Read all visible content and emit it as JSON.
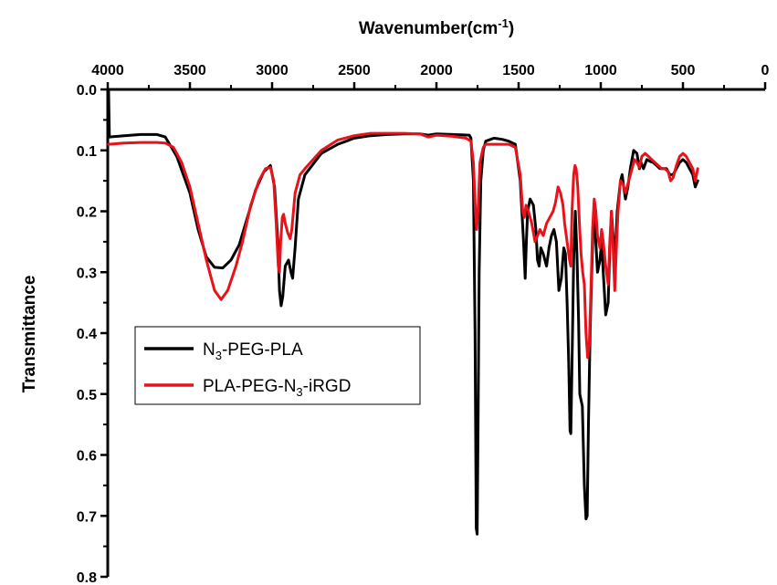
{
  "chart_data": {
    "type": "line",
    "title": "",
    "xlabel": "Wavenumber(cm",
    "xlabel_sup": "-1",
    "xlabel_end": ")",
    "ylabel": "Transmittance",
    "xlim": [
      4000,
      0
    ],
    "ylim": [
      0.0,
      0.8
    ],
    "x_axis_position": "top",
    "y_inverted": true,
    "grid": false,
    "legend_position": "center-left",
    "xticks": [
      "4000",
      "3500",
      "3000",
      "2500",
      "2000",
      "1500",
      "1000",
      "500",
      "0"
    ],
    "yticks": [
      "0.0",
      "0.1",
      "0.2",
      "0.3",
      "0.4",
      "0.5",
      "0.6",
      "0.7",
      "0.8"
    ],
    "series": [
      {
        "name": "N3-PEG-PLA",
        "legend_parts": [
          "N",
          "3",
          "-PEG-PLA"
        ],
        "color": "#000000",
        "points": [
          [
            3995,
            0.0
          ],
          [
            3990,
            0.078
          ],
          [
            3900,
            0.076
          ],
          [
            3800,
            0.074
          ],
          [
            3700,
            0.074
          ],
          [
            3650,
            0.078
          ],
          [
            3580,
            0.11
          ],
          [
            3500,
            0.17
          ],
          [
            3450,
            0.23
          ],
          [
            3400,
            0.275
          ],
          [
            3350,
            0.292
          ],
          [
            3300,
            0.293
          ],
          [
            3250,
            0.28
          ],
          [
            3200,
            0.255
          ],
          [
            3150,
            0.21
          ],
          [
            3100,
            0.165
          ],
          [
            3050,
            0.135
          ],
          [
            3010,
            0.125
          ],
          [
            2985,
            0.16
          ],
          [
            2965,
            0.25
          ],
          [
            2955,
            0.33
          ],
          [
            2945,
            0.355
          ],
          [
            2935,
            0.34
          ],
          [
            2920,
            0.29
          ],
          [
            2900,
            0.28
          ],
          [
            2885,
            0.3
          ],
          [
            2875,
            0.31
          ],
          [
            2860,
            0.26
          ],
          [
            2840,
            0.18
          ],
          [
            2800,
            0.14
          ],
          [
            2700,
            0.105
          ],
          [
            2600,
            0.09
          ],
          [
            2500,
            0.08
          ],
          [
            2400,
            0.076
          ],
          [
            2300,
            0.074
          ],
          [
            2200,
            0.073
          ],
          [
            2100,
            0.073
          ],
          [
            2050,
            0.075
          ],
          [
            2000,
            0.073
          ],
          [
            1900,
            0.074
          ],
          [
            1800,
            0.075
          ],
          [
            1790,
            0.08
          ],
          [
            1775,
            0.15
          ],
          [
            1765,
            0.4
          ],
          [
            1758,
            0.72
          ],
          [
            1752,
            0.73
          ],
          [
            1747,
            0.57
          ],
          [
            1740,
            0.3
          ],
          [
            1730,
            0.15
          ],
          [
            1715,
            0.1
          ],
          [
            1700,
            0.085
          ],
          [
            1650,
            0.08
          ],
          [
            1600,
            0.082
          ],
          [
            1560,
            0.085
          ],
          [
            1520,
            0.09
          ],
          [
            1490,
            0.15
          ],
          [
            1470,
            0.25
          ],
          [
            1460,
            0.31
          ],
          [
            1453,
            0.25
          ],
          [
            1445,
            0.2
          ],
          [
            1430,
            0.18
          ],
          [
            1410,
            0.19
          ],
          [
            1395,
            0.23
          ],
          [
            1385,
            0.28
          ],
          [
            1375,
            0.29
          ],
          [
            1365,
            0.26
          ],
          [
            1350,
            0.27
          ],
          [
            1330,
            0.29
          ],
          [
            1315,
            0.26
          ],
          [
            1300,
            0.24
          ],
          [
            1285,
            0.23
          ],
          [
            1270,
            0.25
          ],
          [
            1255,
            0.33
          ],
          [
            1240,
            0.31
          ],
          [
            1225,
            0.26
          ],
          [
            1215,
            0.27
          ],
          [
            1205,
            0.35
          ],
          [
            1195,
            0.45
          ],
          [
            1187,
            0.56
          ],
          [
            1182,
            0.565
          ],
          [
            1175,
            0.45
          ],
          [
            1165,
            0.28
          ],
          [
            1155,
            0.2
          ],
          [
            1145,
            0.27
          ],
          [
            1135,
            0.38
          ],
          [
            1128,
            0.5
          ],
          [
            1120,
            0.51
          ],
          [
            1112,
            0.52
          ],
          [
            1100,
            0.65
          ],
          [
            1090,
            0.705
          ],
          [
            1083,
            0.7
          ],
          [
            1075,
            0.55
          ],
          [
            1065,
            0.4
          ],
          [
            1055,
            0.3
          ],
          [
            1045,
            0.22
          ],
          [
            1038,
            0.2
          ],
          [
            1030,
            0.25
          ],
          [
            1020,
            0.3
          ],
          [
            1005,
            0.28
          ],
          [
            995,
            0.25
          ],
          [
            985,
            0.3
          ],
          [
            970,
            0.37
          ],
          [
            955,
            0.35
          ],
          [
            945,
            0.26
          ],
          [
            935,
            0.2
          ],
          [
            925,
            0.24
          ],
          [
            915,
            0.29
          ],
          [
            900,
            0.2
          ],
          [
            880,
            0.15
          ],
          [
            870,
            0.14
          ],
          [
            860,
            0.16
          ],
          [
            850,
            0.18
          ],
          [
            835,
            0.16
          ],
          [
            820,
            0.13
          ],
          [
            800,
            0.1
          ],
          [
            780,
            0.105
          ],
          [
            765,
            0.13
          ],
          [
            755,
            0.12
          ],
          [
            740,
            0.13
          ],
          [
            720,
            0.115
          ],
          [
            700,
            0.118
          ],
          [
            680,
            0.12
          ],
          [
            660,
            0.125
          ],
          [
            640,
            0.13
          ],
          [
            620,
            0.13
          ],
          [
            600,
            0.13
          ],
          [
            580,
            0.14
          ],
          [
            560,
            0.14
          ],
          [
            540,
            0.13
          ],
          [
            520,
            0.12
          ],
          [
            500,
            0.115
          ],
          [
            480,
            0.12
          ],
          [
            460,
            0.13
          ],
          [
            440,
            0.14
          ],
          [
            425,
            0.16
          ],
          [
            410,
            0.15
          ]
        ]
      },
      {
        "name": "PLA-PEG-N3-iRGD",
        "legend_parts": [
          "PLA-PEG-N",
          "3",
          "-iRGD"
        ],
        "color": "#e8121b",
        "points": [
          [
            3995,
            0.09
          ],
          [
            3900,
            0.088
          ],
          [
            3800,
            0.087
          ],
          [
            3700,
            0.087
          ],
          [
            3650,
            0.088
          ],
          [
            3600,
            0.095
          ],
          [
            3550,
            0.12
          ],
          [
            3500,
            0.16
          ],
          [
            3450,
            0.22
          ],
          [
            3400,
            0.28
          ],
          [
            3350,
            0.33
          ],
          [
            3310,
            0.345
          ],
          [
            3270,
            0.33
          ],
          [
            3220,
            0.29
          ],
          [
            3180,
            0.25
          ],
          [
            3130,
            0.19
          ],
          [
            3080,
            0.15
          ],
          [
            3040,
            0.13
          ],
          [
            3010,
            0.128
          ],
          [
            2990,
            0.15
          ],
          [
            2975,
            0.22
          ],
          [
            2962,
            0.29
          ],
          [
            2955,
            0.3
          ],
          [
            2948,
            0.25
          ],
          [
            2938,
            0.21
          ],
          [
            2930,
            0.205
          ],
          [
            2920,
            0.22
          ],
          [
            2905,
            0.235
          ],
          [
            2890,
            0.245
          ],
          [
            2880,
            0.23
          ],
          [
            2860,
            0.17
          ],
          [
            2830,
            0.14
          ],
          [
            2800,
            0.13
          ],
          [
            2700,
            0.1
          ],
          [
            2600,
            0.083
          ],
          [
            2500,
            0.076
          ],
          [
            2400,
            0.072
          ],
          [
            2300,
            0.072
          ],
          [
            2200,
            0.072
          ],
          [
            2100,
            0.073
          ],
          [
            2050,
            0.078
          ],
          [
            2000,
            0.075
          ],
          [
            1900,
            0.077
          ],
          [
            1820,
            0.08
          ],
          [
            1790,
            0.085
          ],
          [
            1775,
            0.12
          ],
          [
            1763,
            0.2
          ],
          [
            1755,
            0.23
          ],
          [
            1747,
            0.2
          ],
          [
            1735,
            0.12
          ],
          [
            1715,
            0.095
          ],
          [
            1700,
            0.09
          ],
          [
            1650,
            0.09
          ],
          [
            1600,
            0.09
          ],
          [
            1560,
            0.09
          ],
          [
            1520,
            0.095
          ],
          [
            1490,
            0.14
          ],
          [
            1475,
            0.2
          ],
          [
            1465,
            0.21
          ],
          [
            1455,
            0.19
          ],
          [
            1440,
            0.2
          ],
          [
            1420,
            0.22
          ],
          [
            1400,
            0.25
          ],
          [
            1385,
            0.24
          ],
          [
            1370,
            0.23
          ],
          [
            1350,
            0.24
          ],
          [
            1330,
            0.22
          ],
          [
            1310,
            0.21
          ],
          [
            1290,
            0.2
          ],
          [
            1275,
            0.185
          ],
          [
            1260,
            0.16
          ],
          [
            1245,
            0.17
          ],
          [
            1230,
            0.19
          ],
          [
            1220,
            0.22
          ],
          [
            1210,
            0.24
          ],
          [
            1200,
            0.26
          ],
          [
            1190,
            0.28
          ],
          [
            1183,
            0.29
          ],
          [
            1175,
            0.2
          ],
          [
            1165,
            0.14
          ],
          [
            1157,
            0.125
          ],
          [
            1150,
            0.13
          ],
          [
            1140,
            0.16
          ],
          [
            1130,
            0.22
          ],
          [
            1120,
            0.27
          ],
          [
            1110,
            0.3
          ],
          [
            1100,
            0.32
          ],
          [
            1090,
            0.4
          ],
          [
            1080,
            0.44
          ],
          [
            1070,
            0.42
          ],
          [
            1060,
            0.33
          ],
          [
            1050,
            0.23
          ],
          [
            1040,
            0.18
          ],
          [
            1030,
            0.2
          ],
          [
            1020,
            0.24
          ],
          [
            1005,
            0.26
          ],
          [
            995,
            0.23
          ],
          [
            985,
            0.25
          ],
          [
            970,
            0.29
          ],
          [
            955,
            0.32
          ],
          [
            945,
            0.25
          ],
          [
            935,
            0.2
          ],
          [
            925,
            0.26
          ],
          [
            915,
            0.33
          ],
          [
            905,
            0.26
          ],
          [
            895,
            0.2
          ],
          [
            880,
            0.15
          ],
          [
            865,
            0.155
          ],
          [
            850,
            0.17
          ],
          [
            830,
            0.15
          ],
          [
            810,
            0.13
          ],
          [
            795,
            0.115
          ],
          [
            780,
            0.12
          ],
          [
            765,
            0.128
          ],
          [
            750,
            0.11
          ],
          [
            730,
            0.105
          ],
          [
            710,
            0.11
          ],
          [
            690,
            0.115
          ],
          [
            670,
            0.12
          ],
          [
            650,
            0.125
          ],
          [
            630,
            0.13
          ],
          [
            610,
            0.13
          ],
          [
            590,
            0.135
          ],
          [
            575,
            0.15
          ],
          [
            560,
            0.145
          ],
          [
            540,
            0.125
          ],
          [
            520,
            0.11
          ],
          [
            500,
            0.105
          ],
          [
            480,
            0.11
          ],
          [
            460,
            0.12
          ],
          [
            440,
            0.13
          ],
          [
            425,
            0.15
          ],
          [
            410,
            0.13
          ]
        ]
      }
    ]
  }
}
